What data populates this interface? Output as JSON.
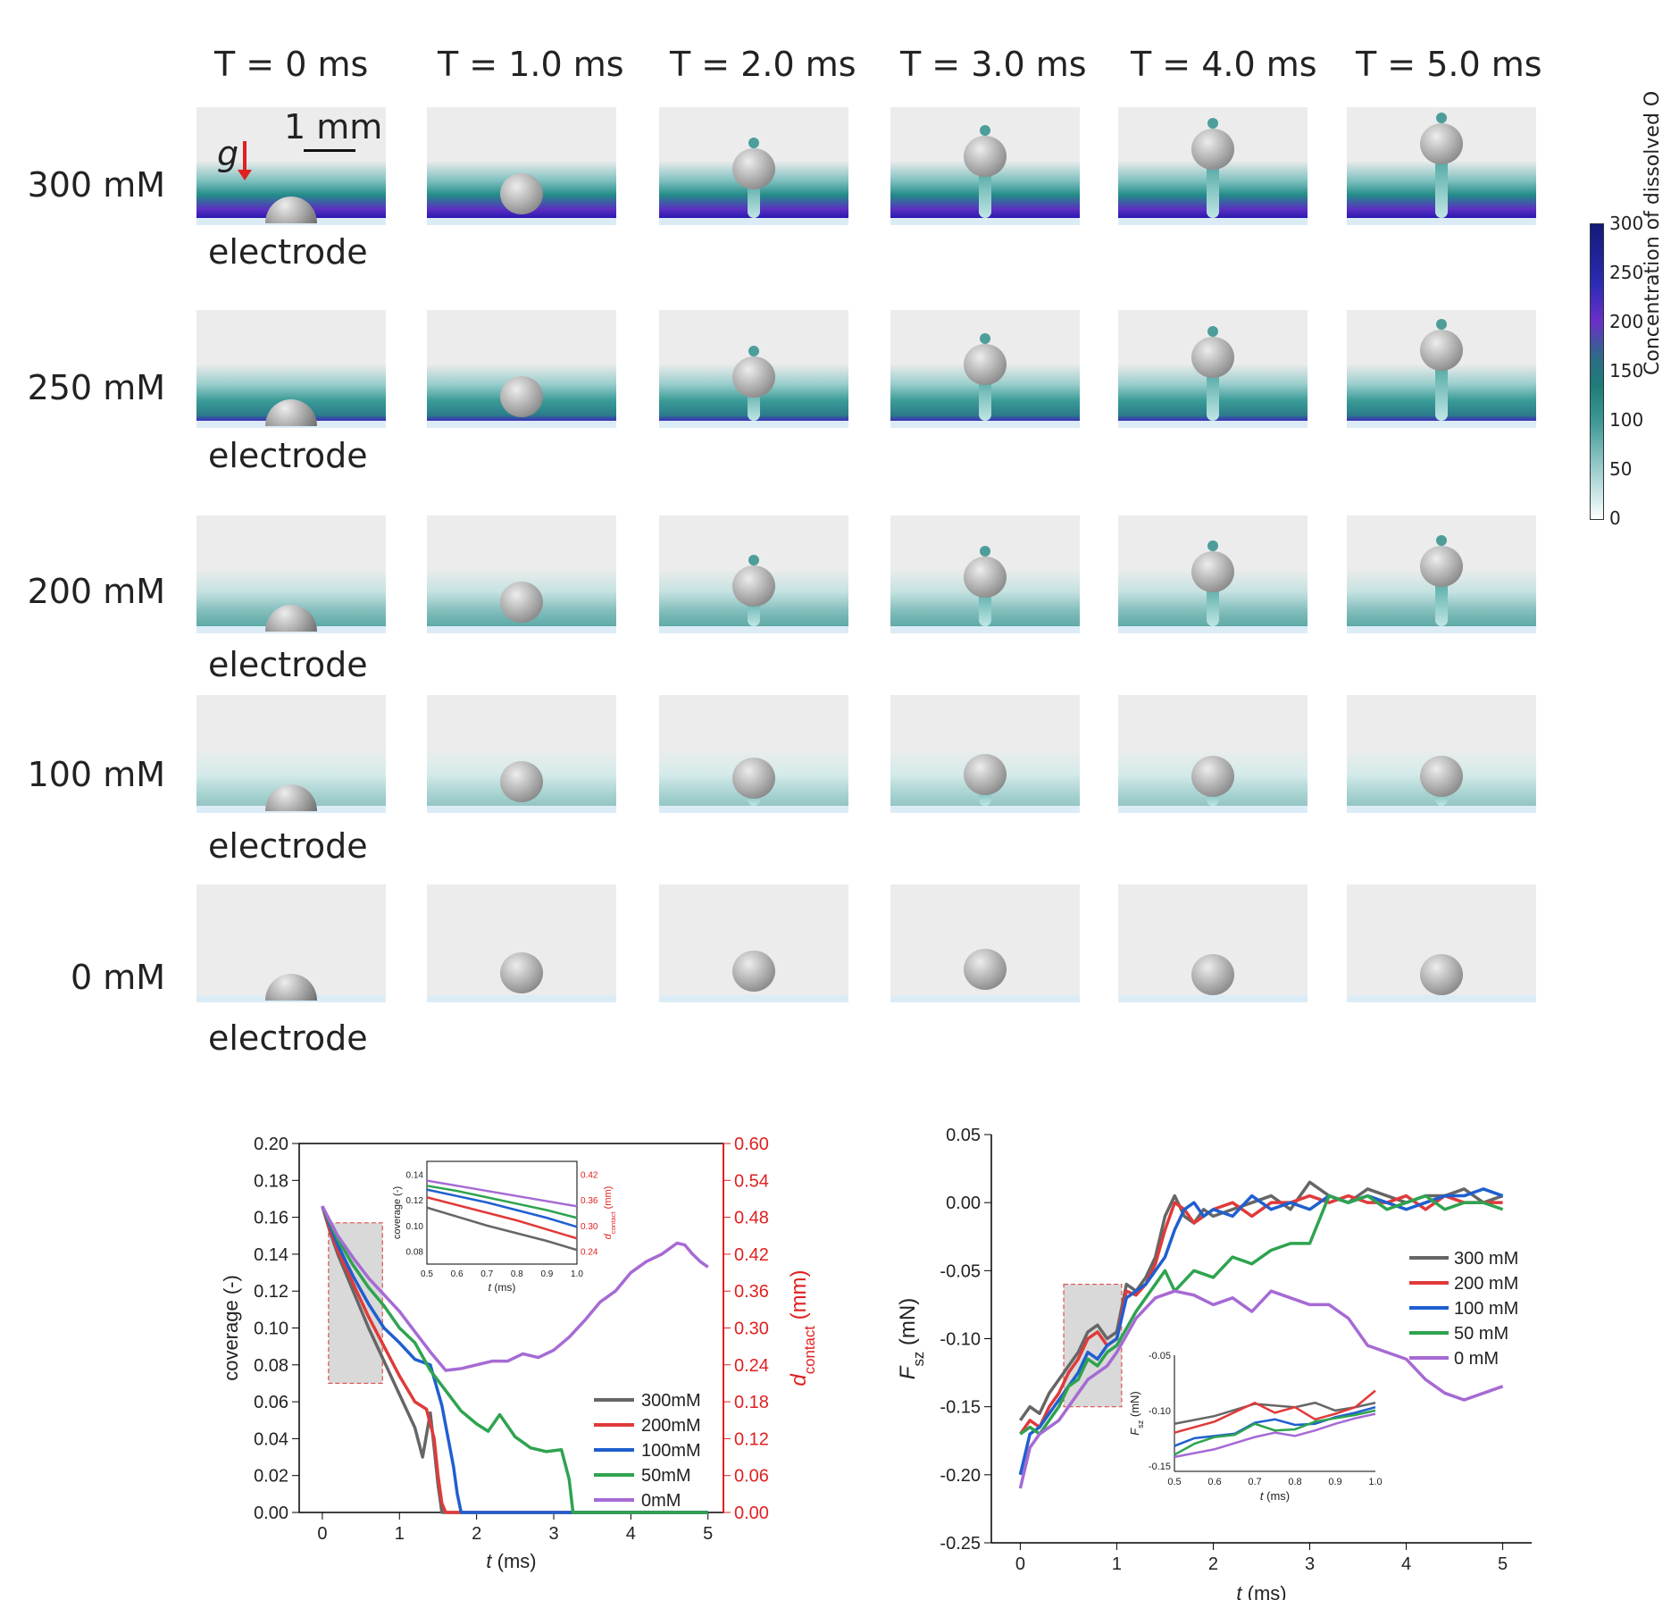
{
  "simulation_grid": {
    "time_labels": [
      "T = 0 ms",
      "T = 1.0 ms",
      "T = 2.0 ms",
      "T = 3.0 ms",
      "T = 4.0 ms",
      "T = 5.0 ms"
    ],
    "row_labels": [
      "300 mM",
      "250 mM",
      "200 mM",
      "100 mM",
      "0 mM"
    ],
    "electrode_label": "electrode",
    "gravity_label": "g",
    "scale_bar_label": "1 mm",
    "colorbar": {
      "ticks": [
        "300",
        "250",
        "200",
        "150",
        "100",
        "50",
        "0"
      ],
      "label": "Concentration of dissolved O",
      "colors": [
        "#121a78",
        "#6b2fc9",
        "#1e7d78",
        "#dff0f0"
      ]
    }
  },
  "chart_data": [
    {
      "type": "line",
      "xlabel_italic": "t",
      "xlabel_unit": " (ms)",
      "ylabel": "coverage (-)",
      "y2label_italic": "d",
      "y2label_sub": "contact",
      "y2label_unit": " (mm)",
      "xlim": [
        0,
        5
      ],
      "ylim": [
        0,
        0.2
      ],
      "y2lim": [
        0,
        0.6
      ],
      "x_ticks": [
        "0",
        "1",
        "2",
        "3",
        "4",
        "5"
      ],
      "y_ticks": [
        "0.00",
        "0.02",
        "0.04",
        "0.06",
        "0.08",
        "0.10",
        "0.12",
        "0.14",
        "0.16",
        "0.18",
        "0.20"
      ],
      "y2_ticks": [
        "0.00",
        "0.06",
        "0.12",
        "0.18",
        "0.24",
        "0.30",
        "0.36",
        "0.42",
        "0.48",
        "0.54",
        "0.60"
      ],
      "legend_position": "center-right",
      "series": [
        {
          "name": "300mM",
          "color": "#666666",
          "x": [
            0,
            0.1,
            0.2,
            0.4,
            0.6,
            0.8,
            1.0,
            1.2,
            1.3,
            1.4,
            1.45,
            1.5,
            1.55,
            1.6,
            5
          ],
          "y": [
            0.166,
            0.152,
            0.14,
            0.12,
            0.1,
            0.082,
            0.064,
            0.046,
            0.03,
            0.054,
            0.035,
            0.015,
            0.0,
            0.0,
            0.0
          ]
        },
        {
          "name": "200mM",
          "color": "#e03a3a",
          "x": [
            0,
            0.1,
            0.2,
            0.4,
            0.6,
            0.8,
            1.0,
            1.2,
            1.35,
            1.45,
            1.5,
            1.55,
            1.6,
            1.7,
            5
          ],
          "y": [
            0.166,
            0.153,
            0.142,
            0.124,
            0.106,
            0.09,
            0.074,
            0.06,
            0.056,
            0.04,
            0.02,
            0.005,
            0.0,
            0.0,
            0.0
          ]
        },
        {
          "name": "100mM",
          "color": "#1f5fcf",
          "x": [
            0,
            0.2,
            0.4,
            0.6,
            0.8,
            1.0,
            1.2,
            1.4,
            1.55,
            1.7,
            1.75,
            1.8,
            1.85,
            5
          ],
          "y": [
            0.166,
            0.145,
            0.128,
            0.113,
            0.1,
            0.092,
            0.083,
            0.08,
            0.058,
            0.025,
            0.01,
            0.0,
            0.0,
            0.0
          ]
        },
        {
          "name": "50mM",
          "color": "#2ea34f",
          "x": [
            0,
            0.2,
            0.4,
            0.6,
            0.8,
            1.0,
            1.2,
            1.4,
            1.6,
            1.8,
            2.0,
            2.15,
            2.3,
            2.5,
            2.7,
            2.9,
            3.1,
            3.2,
            3.25,
            3.3,
            5
          ],
          "y": [
            0.166,
            0.148,
            0.134,
            0.122,
            0.112,
            0.1,
            0.092,
            0.077,
            0.066,
            0.055,
            0.048,
            0.044,
            0.053,
            0.041,
            0.035,
            0.033,
            0.034,
            0.018,
            0.0,
            0.0,
            0.0
          ]
        },
        {
          "name": "0mM",
          "color": "#a66ad4",
          "x": [
            0,
            0.2,
            0.4,
            0.6,
            0.8,
            1.0,
            1.2,
            1.4,
            1.6,
            1.8,
            2.0,
            2.2,
            2.4,
            2.6,
            2.8,
            3.0,
            3.2,
            3.4,
            3.6,
            3.8,
            4.0,
            4.2,
            4.4,
            4.6,
            4.7,
            4.8,
            4.9,
            5.0
          ],
          "y": [
            0.166,
            0.15,
            0.138,
            0.127,
            0.118,
            0.109,
            0.098,
            0.087,
            0.077,
            0.078,
            0.08,
            0.082,
            0.082,
            0.086,
            0.084,
            0.088,
            0.095,
            0.104,
            0.114,
            0.12,
            0.13,
            0.136,
            0.14,
            0.146,
            0.145,
            0.14,
            0.136,
            0.133
          ]
        }
      ],
      "inset": {
        "ylabel": "coverage (-)",
        "y2label_italic": "d",
        "y2label_sub": "contact",
        "y2label_unit": " (mm)",
        "xlabel_italic": "t",
        "xlabel_unit": " (ms)",
        "xlim": [
          0.5,
          1.0
        ],
        "ylim": [
          0.07,
          0.15
        ],
        "x_ticks": [
          "0.5",
          "0.6",
          "0.7",
          "0.8",
          "0.9",
          "1.0"
        ],
        "y_ticks": [
          "0.08",
          "0.10",
          "0.12",
          "0.14"
        ],
        "y2_ticks": [
          "0.24",
          "0.30",
          "0.36",
          "0.42"
        ],
        "series": [
          {
            "name": "300mM",
            "color": "#666666",
            "x": [
              0.5,
              0.6,
              0.7,
              0.8,
              0.9,
              1.0
            ],
            "y": [
              0.114,
              0.107,
              0.1,
              0.094,
              0.088,
              0.081
            ]
          },
          {
            "name": "200mM",
            "color": "#e03a3a",
            "x": [
              0.5,
              0.6,
              0.7,
              0.8,
              0.9,
              1.0
            ],
            "y": [
              0.122,
              0.116,
              0.11,
              0.104,
              0.097,
              0.09
            ]
          },
          {
            "name": "100mM",
            "color": "#1f5fcf",
            "x": [
              0.5,
              0.6,
              0.7,
              0.8,
              0.9,
              1.0
            ],
            "y": [
              0.128,
              0.123,
              0.118,
              0.112,
              0.106,
              0.099
            ]
          },
          {
            "name": "50mM",
            "color": "#2ea34f",
            "x": [
              0.5,
              0.6,
              0.7,
              0.8,
              0.9,
              1.0
            ],
            "y": [
              0.131,
              0.127,
              0.122,
              0.117,
              0.112,
              0.106
            ]
          },
          {
            "name": "0mM",
            "color": "#a66ad4",
            "x": [
              0.5,
              0.6,
              0.7,
              0.8,
              0.9,
              1.0
            ],
            "y": [
              0.135,
              0.131,
              0.127,
              0.123,
              0.119,
              0.115
            ]
          }
        ]
      }
    },
    {
      "type": "line",
      "xlabel_italic": "t",
      "xlabel_unit": " (ms)",
      "ylabel_italic": "F",
      "ylabel_sub": "sz",
      "ylabel_unit": " (mN)",
      "xlim": [
        -0.3,
        5.3
      ],
      "ylim": [
        -0.25,
        0.05
      ],
      "x_ticks": [
        "0",
        "1",
        "2",
        "3",
        "4",
        "5"
      ],
      "y_ticks": [
        "0.05",
        "0.00",
        "-0.05",
        "-0.10",
        "-0.15",
        "-0.20",
        "-0.25"
      ],
      "legend_position": "right",
      "series": [
        {
          "name": "300 mM",
          "color": "#666666",
          "x": [
            0,
            0.1,
            0.2,
            0.3,
            0.4,
            0.5,
            0.6,
            0.7,
            0.8,
            0.9,
            1.0,
            1.1,
            1.2,
            1.3,
            1.4,
            1.5,
            1.6,
            1.7,
            1.8,
            1.9,
            2.0,
            2.2,
            2.4,
            2.6,
            2.8,
            3.0,
            3.2,
            3.4,
            3.6,
            3.8,
            4.0,
            4.2,
            4.4,
            4.6,
            4.8,
            5.0
          ],
          "y": [
            -0.16,
            -0.15,
            -0.155,
            -0.14,
            -0.13,
            -0.12,
            -0.11,
            -0.095,
            -0.09,
            -0.1,
            -0.095,
            -0.06,
            -0.065,
            -0.055,
            -0.04,
            -0.01,
            0.005,
            -0.01,
            -0.015,
            -0.005,
            -0.01,
            -0.005,
            0.0,
            0.005,
            -0.005,
            0.015,
            0.005,
            0.0,
            0.01,
            0.005,
            0.0,
            0.005,
            0.005,
            0.01,
            0.0,
            0.005
          ]
        },
        {
          "name": "200 mM",
          "color": "#e03a3a",
          "x": [
            0,
            0.1,
            0.2,
            0.3,
            0.4,
            0.5,
            0.6,
            0.7,
            0.8,
            0.9,
            1.0,
            1.1,
            1.2,
            1.3,
            1.4,
            1.5,
            1.6,
            1.7,
            1.8,
            1.9,
            2.0,
            2.2,
            2.4,
            2.6,
            2.8,
            3.0,
            3.2,
            3.4,
            3.6,
            3.8,
            4.0,
            4.2,
            4.4,
            4.6,
            4.8,
            5.0
          ],
          "y": [
            -0.17,
            -0.16,
            -0.165,
            -0.15,
            -0.14,
            -0.125,
            -0.115,
            -0.1,
            -0.095,
            -0.105,
            -0.1,
            -0.065,
            -0.068,
            -0.06,
            -0.045,
            -0.02,
            0.0,
            -0.005,
            -0.015,
            -0.01,
            -0.005,
            0.0,
            -0.01,
            0.0,
            0.0,
            0.005,
            0.0,
            0.005,
            0.0,
            0.0,
            0.005,
            -0.005,
            0.005,
            0.0,
            0.0,
            0.0
          ]
        },
        {
          "name": "100 mM",
          "color": "#1f5fcf",
          "x": [
            0,
            0.1,
            0.2,
            0.3,
            0.4,
            0.5,
            0.6,
            0.7,
            0.8,
            0.9,
            1.0,
            1.1,
            1.2,
            1.3,
            1.4,
            1.5,
            1.6,
            1.7,
            1.8,
            1.9,
            2.0,
            2.2,
            2.4,
            2.6,
            2.8,
            3.0,
            3.2,
            3.4,
            3.6,
            3.8,
            4.0,
            4.2,
            4.4,
            4.6,
            4.8,
            5.0
          ],
          "y": [
            -0.2,
            -0.17,
            -0.165,
            -0.155,
            -0.145,
            -0.135,
            -0.125,
            -0.11,
            -0.115,
            -0.105,
            -0.1,
            -0.07,
            -0.065,
            -0.06,
            -0.05,
            -0.04,
            -0.02,
            -0.005,
            0.0,
            -0.01,
            -0.005,
            -0.01,
            0.005,
            -0.005,
            0.0,
            -0.005,
            0.005,
            0.0,
            0.005,
            0.0,
            -0.005,
            0.0,
            0.005,
            0.005,
            0.01,
            0.005
          ]
        },
        {
          "name": "50 mM",
          "color": "#2ea34f",
          "x": [
            0,
            0.1,
            0.2,
            0.3,
            0.4,
            0.5,
            0.6,
            0.7,
            0.8,
            0.9,
            1.0,
            1.2,
            1.4,
            1.5,
            1.6,
            1.8,
            2.0,
            2.2,
            2.4,
            2.6,
            2.8,
            3.0,
            3.2,
            3.4,
            3.6,
            3.8,
            4.0,
            4.2,
            4.4,
            4.6,
            4.8,
            5.0
          ],
          "y": [
            -0.17,
            -0.165,
            -0.17,
            -0.16,
            -0.15,
            -0.135,
            -0.13,
            -0.115,
            -0.12,
            -0.11,
            -0.105,
            -0.08,
            -0.06,
            -0.05,
            -0.065,
            -0.05,
            -0.055,
            -0.04,
            -0.045,
            -0.035,
            -0.03,
            -0.03,
            0.005,
            0.0,
            0.005,
            -0.005,
            0.0,
            0.005,
            -0.005,
            0.0,
            0.0,
            -0.005
          ]
        },
        {
          "name": "0 mM",
          "color": "#a66ad4",
          "x": [
            0,
            0.1,
            0.2,
            0.3,
            0.4,
            0.5,
            0.6,
            0.7,
            0.8,
            0.9,
            1.0,
            1.2,
            1.4,
            1.6,
            1.8,
            2.0,
            2.2,
            2.4,
            2.6,
            2.8,
            3.0,
            3.2,
            3.4,
            3.6,
            3.8,
            4.0,
            4.2,
            4.4,
            4.6,
            4.8,
            5.0
          ],
          "y": [
            -0.21,
            -0.18,
            -0.17,
            -0.165,
            -0.16,
            -0.15,
            -0.14,
            -0.13,
            -0.125,
            -0.12,
            -0.11,
            -0.085,
            -0.07,
            -0.065,
            -0.068,
            -0.075,
            -0.07,
            -0.08,
            -0.065,
            -0.07,
            -0.075,
            -0.075,
            -0.085,
            -0.105,
            -0.11,
            -0.115,
            -0.13,
            -0.14,
            -0.145,
            -0.14,
            -0.135
          ]
        }
      ],
      "inset": {
        "ylabel_italic": "F",
        "ylabel_sub": "sz",
        "ylabel_unit": " (mN)",
        "xlabel_italic": "t",
        "xlabel_unit": " (ms)",
        "xlim": [
          0.5,
          1.0
        ],
        "ylim": [
          -0.155,
          -0.05
        ],
        "x_ticks": [
          "0.5",
          "0.6",
          "0.7",
          "0.8",
          "0.9",
          "1.0"
        ],
        "y_ticks": [
          "-0.05",
          "-0.10",
          "-0.15"
        ],
        "series": [
          {
            "name": "300 mM",
            "color": "#666666",
            "x": [
              0.5,
              0.6,
              0.7,
              0.8,
              0.85,
              0.9,
              0.95,
              1.0
            ],
            "y": [
              -0.112,
              -0.105,
              -0.094,
              -0.097,
              -0.093,
              -0.1,
              -0.097,
              -0.093
            ]
          },
          {
            "name": "200 mM",
            "color": "#e03a3a",
            "x": [
              0.5,
              0.6,
              0.7,
              0.75,
              0.8,
              0.85,
              0.9,
              0.95,
              1.0
            ],
            "y": [
              -0.12,
              -0.11,
              -0.093,
              -0.102,
              -0.097,
              -0.108,
              -0.103,
              -0.097,
              -0.082
            ]
          },
          {
            "name": "100 mM",
            "color": "#1f5fcf",
            "x": [
              0.5,
              0.55,
              0.6,
              0.65,
              0.7,
              0.75,
              0.8,
              0.85,
              0.9,
              0.95,
              1.0
            ],
            "y": [
              -0.132,
              -0.125,
              -0.123,
              -0.121,
              -0.111,
              -0.108,
              -0.113,
              -0.112,
              -0.106,
              -0.102,
              -0.097
            ]
          },
          {
            "name": "50 mM",
            "color": "#2ea34f",
            "x": [
              0.5,
              0.55,
              0.6,
              0.65,
              0.7,
              0.75,
              0.8,
              0.85,
              0.9,
              0.95,
              1.0
            ],
            "y": [
              -0.14,
              -0.13,
              -0.124,
              -0.122,
              -0.112,
              -0.118,
              -0.117,
              -0.11,
              -0.107,
              -0.104,
              -0.1
            ]
          },
          {
            "name": "0 mM",
            "color": "#a66ad4",
            "x": [
              0.5,
              0.6,
              0.7,
              0.75,
              0.8,
              0.85,
              0.9,
              0.95,
              1.0
            ],
            "y": [
              -0.142,
              -0.135,
              -0.124,
              -0.12,
              -0.123,
              -0.118,
              -0.112,
              -0.107,
              -0.103
            ]
          }
        ]
      }
    }
  ]
}
